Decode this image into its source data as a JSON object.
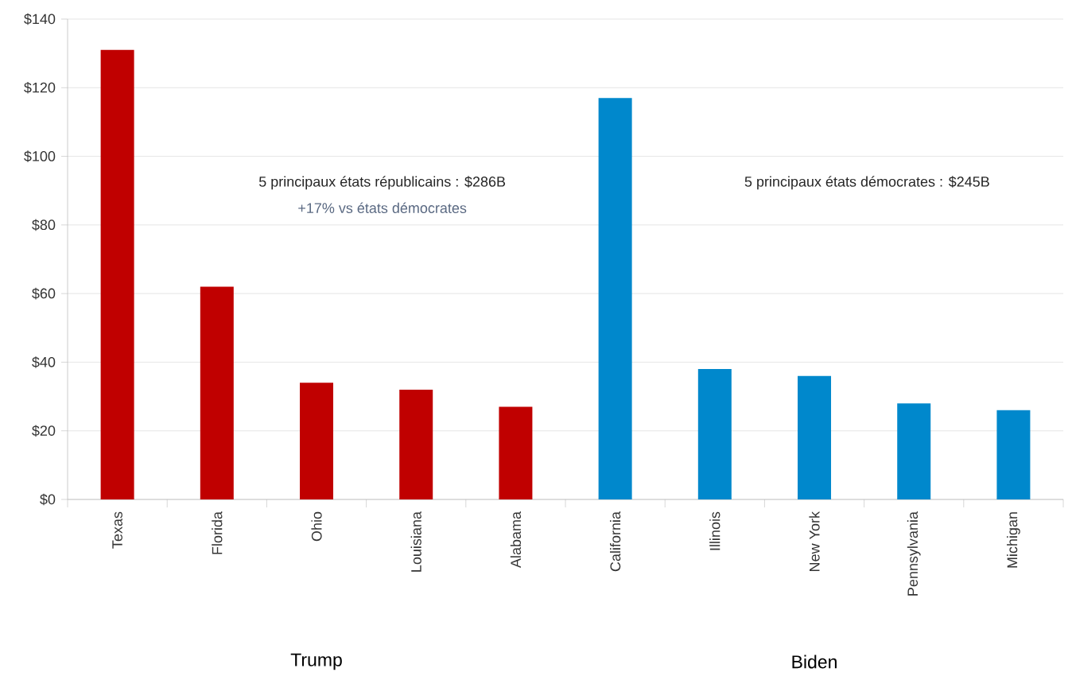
{
  "chart_data": {
    "type": "bar",
    "categories": [
      "Texas",
      "Florida",
      "Ohio",
      "Louisiana",
      "Alabama",
      "California",
      "Illinois",
      "New York",
      "Pennsylvania",
      "Michigan"
    ],
    "values": [
      131,
      62,
      34,
      32,
      27,
      117,
      38,
      36,
      28,
      26
    ],
    "colors": [
      "#c00000",
      "#c00000",
      "#c00000",
      "#c00000",
      "#c00000",
      "#0088cc",
      "#0088cc",
      "#0088cc",
      "#0088cc",
      "#0088cc"
    ],
    "ylim": [
      0,
      140
    ],
    "yticks": [
      {
        "value": 0,
        "label": "$0"
      },
      {
        "value": 20,
        "label": "$20"
      },
      {
        "value": 40,
        "label": "$40"
      },
      {
        "value": 60,
        "label": "$60"
      },
      {
        "value": 80,
        "label": "$80"
      },
      {
        "value": 100,
        "label": "$100"
      },
      {
        "value": 120,
        "label": "$120"
      },
      {
        "value": 140,
        "label": "$140"
      }
    ],
    "grid": "y",
    "annotations": [
      "Trump",
      "Biden",
      "5 principaux états républicains : $286B",
      "+17% vs états démocrates",
      "5 principaux états démocrates : $245B"
    ]
  }
}
